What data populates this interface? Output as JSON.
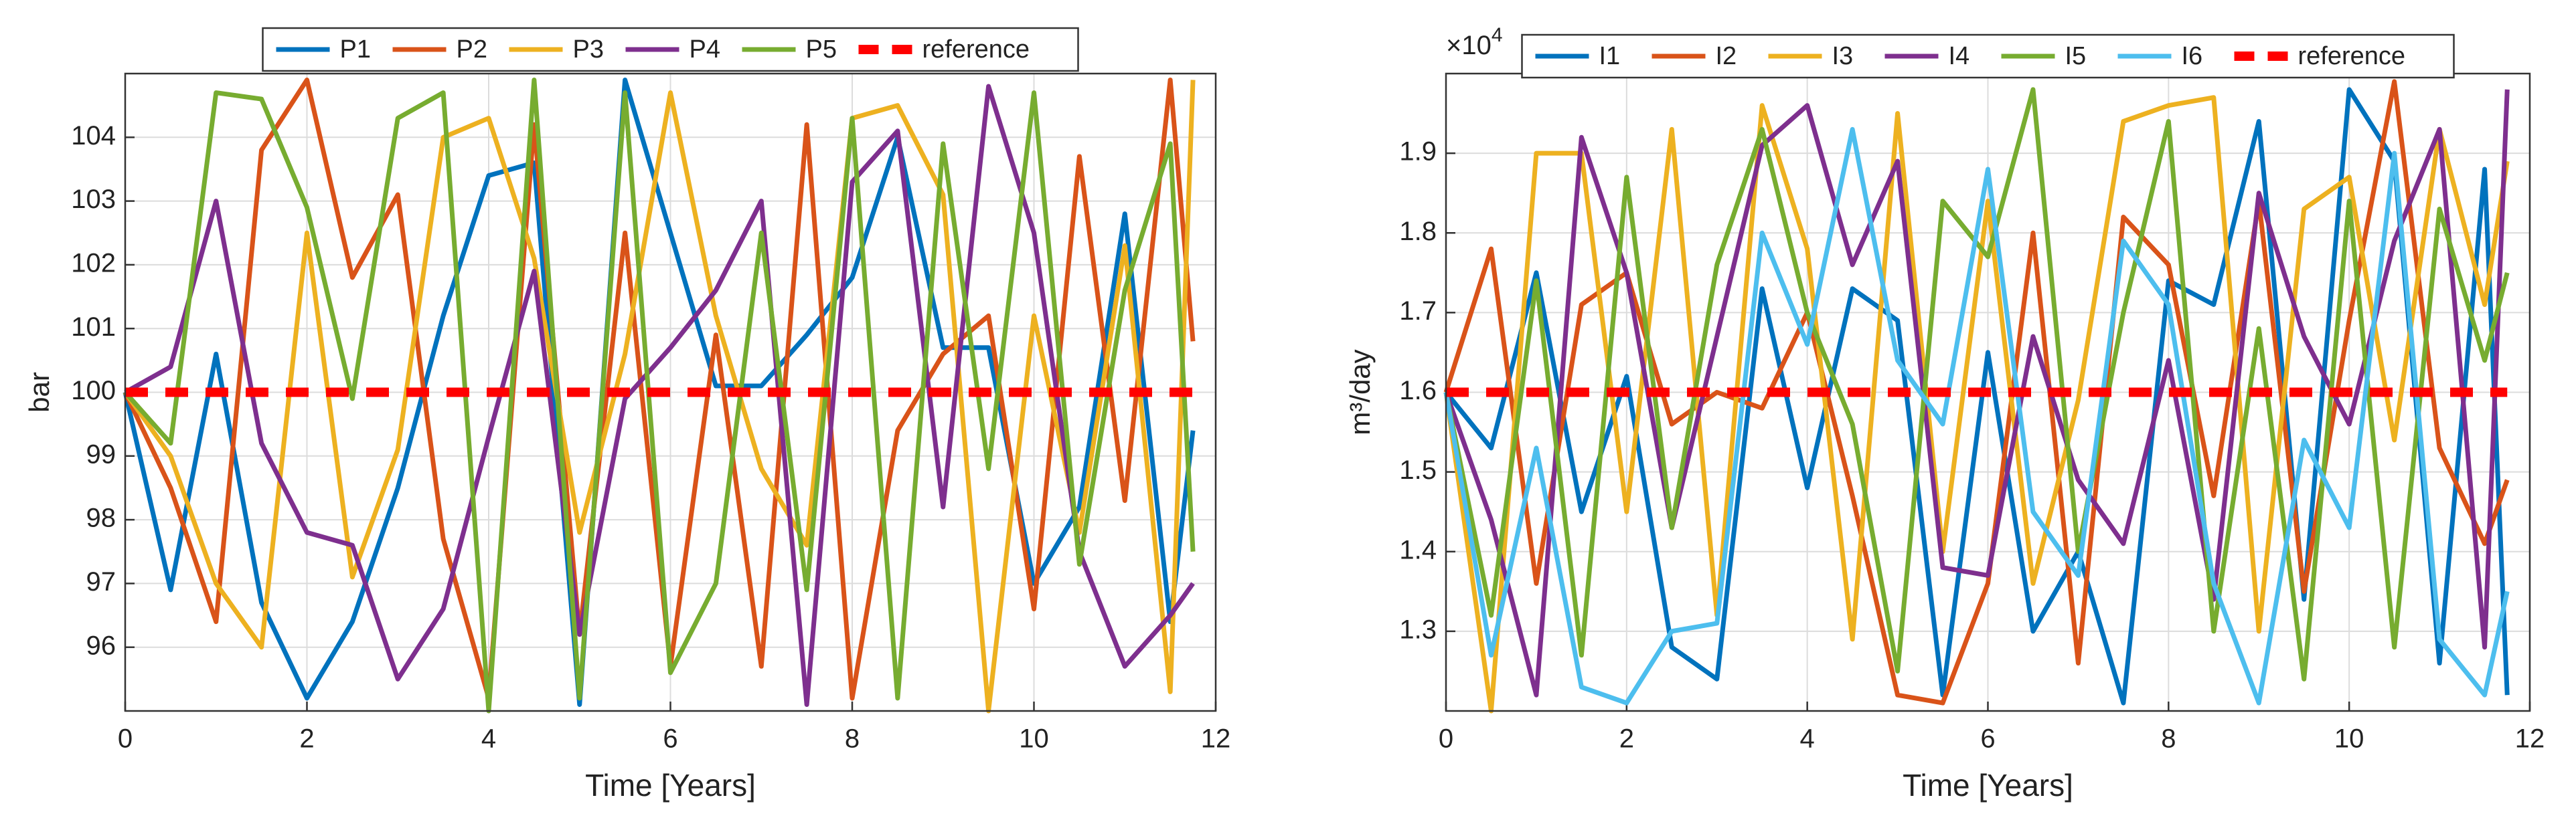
{
  "chart_data": [
    {
      "type": "line",
      "x_label": "Time [Years]",
      "y_label": "bar",
      "x": [
        0,
        0.5,
        1,
        1.5,
        2,
        2.5,
        3,
        3.5,
        4,
        4.5,
        5,
        5.5,
        6,
        6.5,
        7,
        7.5,
        8,
        8.5,
        9,
        9.5,
        10,
        10.5,
        11,
        11.5,
        11.75
      ],
      "xlim": [
        0,
        12
      ],
      "xticks": [
        0,
        2,
        4,
        6,
        8,
        10,
        12
      ],
      "ylim": [
        95,
        105
      ],
      "yticks": [
        96,
        97,
        98,
        99,
        100,
        101,
        102,
        103,
        104
      ],
      "grid": true,
      "legend": "north",
      "series": [
        {
          "name": "P1",
          "color": "#0072bd",
          "values": [
            100,
            96.9,
            100.6,
            96.7,
            95.2,
            96.4,
            98.5,
            101.2,
            103.4,
            103.6,
            95.1,
            104.9,
            102.5,
            100.1,
            100.1,
            100.9,
            101.8,
            104.0,
            100.7,
            100.7,
            97.0,
            98.2,
            102.8,
            96.4,
            99.4
          ]
        },
        {
          "name": "P2",
          "color": "#d95319",
          "values": [
            100,
            98.5,
            96.4,
            103.8,
            104.9,
            101.8,
            103.1,
            97.7,
            95.2,
            104.2,
            96.2,
            102.5,
            95.7,
            100.9,
            95.7,
            104.2,
            95.2,
            99.4,
            100.6,
            101.2,
            96.6,
            103.7,
            98.3,
            104.9,
            100.8
          ]
        },
        {
          "name": "P3",
          "color": "#edb120",
          "values": [
            100,
            99.0,
            97.0,
            96.0,
            102.5,
            97.1,
            99.1,
            104.0,
            104.3,
            102.1,
            97.8,
            100.6,
            104.7,
            101.2,
            98.8,
            97.6,
            104.3,
            104.5,
            103.1,
            95.0,
            101.2,
            97.8,
            102.3,
            95.3,
            104.9
          ]
        },
        {
          "name": "P4",
          "color": "#7e2f8e",
          "values": [
            100,
            100.4,
            103.0,
            99.2,
            97.8,
            97.6,
            95.5,
            96.6,
            99.3,
            101.9,
            96.2,
            99.9,
            100.7,
            101.6,
            103.0,
            95.1,
            103.3,
            104.1,
            98.2,
            104.8,
            102.5,
            97.5,
            95.7,
            96.5,
            97.0
          ]
        },
        {
          "name": "P5",
          "color": "#77ac30",
          "values": [
            100,
            99.2,
            104.7,
            104.6,
            102.9,
            99.9,
            104.3,
            104.7,
            95.0,
            104.9,
            95.2,
            104.7,
            95.6,
            97.0,
            102.5,
            96.9,
            104.3,
            95.2,
            103.9,
            98.8,
            104.7,
            97.3,
            101.6,
            103.9,
            97.5
          ]
        },
        {
          "name": "reference",
          "color": "#ff0000",
          "dashed": true,
          "values": [
            100,
            100,
            100,
            100,
            100,
            100,
            100,
            100,
            100,
            100,
            100,
            100,
            100,
            100,
            100,
            100,
            100,
            100,
            100,
            100,
            100,
            100,
            100,
            100,
            100
          ]
        }
      ]
    },
    {
      "type": "line",
      "x_label": "Time [Years]",
      "y_label": "m³/day",
      "y_multiplier": {
        "base": "×10",
        "exponent": "4"
      },
      "x": [
        0,
        0.5,
        1,
        1.5,
        2,
        2.5,
        3,
        3.5,
        4,
        4.5,
        5,
        5.5,
        6,
        6.5,
        7,
        7.5,
        8,
        8.5,
        9,
        9.5,
        10,
        10.5,
        11,
        11.5,
        11.75
      ],
      "xlim": [
        0,
        12
      ],
      "xticks": [
        0,
        2,
        4,
        6,
        8,
        10,
        12
      ],
      "ylim": [
        1.2,
        2.0
      ],
      "yticks": [
        1.3,
        1.4,
        1.5,
        1.6,
        1.7,
        1.8,
        1.9
      ],
      "grid": true,
      "legend": "north",
      "series": [
        {
          "name": "I1",
          "color": "#0072bd",
          "values": [
            1.6,
            1.53,
            1.75,
            1.45,
            1.62,
            1.28,
            1.24,
            1.73,
            1.48,
            1.73,
            1.69,
            1.22,
            1.65,
            1.3,
            1.4,
            1.21,
            1.74,
            1.71,
            1.94,
            1.34,
            1.98,
            1.89,
            1.26,
            1.88,
            1.22
          ]
        },
        {
          "name": "I2",
          "color": "#d95319",
          "values": [
            1.6,
            1.78,
            1.36,
            1.71,
            1.75,
            1.56,
            1.6,
            1.58,
            1.7,
            1.47,
            1.22,
            1.21,
            1.36,
            1.8,
            1.26,
            1.82,
            1.76,
            1.47,
            1.84,
            1.35,
            1.69,
            1.99,
            1.53,
            1.41,
            1.49
          ]
        },
        {
          "name": "I3",
          "color": "#edb120",
          "values": [
            1.6,
            1.2,
            1.9,
            1.9,
            1.45,
            1.93,
            1.32,
            1.96,
            1.78,
            1.29,
            1.95,
            1.4,
            1.84,
            1.36,
            1.59,
            1.94,
            1.96,
            1.97,
            1.3,
            1.83,
            1.87,
            1.54,
            1.93,
            1.71,
            1.89
          ]
        },
        {
          "name": "I4",
          "color": "#7e2f8e",
          "values": [
            1.6,
            1.44,
            1.22,
            1.92,
            1.75,
            1.43,
            1.67,
            1.91,
            1.96,
            1.76,
            1.89,
            1.38,
            1.37,
            1.67,
            1.49,
            1.41,
            1.64,
            1.34,
            1.85,
            1.67,
            1.56,
            1.79,
            1.93,
            1.28,
            1.98
          ]
        },
        {
          "name": "I5",
          "color": "#77ac30",
          "values": [
            1.6,
            1.32,
            1.74,
            1.27,
            1.87,
            1.43,
            1.76,
            1.93,
            1.7,
            1.56,
            1.25,
            1.84,
            1.77,
            1.98,
            1.4,
            1.7,
            1.94,
            1.3,
            1.68,
            1.24,
            1.84,
            1.28,
            1.83,
            1.64,
            1.75
          ]
        },
        {
          "name": "I6",
          "color": "#4dbeee",
          "values": [
            1.6,
            1.27,
            1.53,
            1.23,
            1.21,
            1.3,
            1.31,
            1.8,
            1.66,
            1.93,
            1.64,
            1.56,
            1.88,
            1.45,
            1.37,
            1.79,
            1.71,
            1.36,
            1.21,
            1.54,
            1.43,
            1.9,
            1.29,
            1.22,
            1.35
          ]
        },
        {
          "name": "reference",
          "color": "#ff0000",
          "dashed": true,
          "values": [
            1.6,
            1.6,
            1.6,
            1.6,
            1.6,
            1.6,
            1.6,
            1.6,
            1.6,
            1.6,
            1.6,
            1.6,
            1.6,
            1.6,
            1.6,
            1.6,
            1.6,
            1.6,
            1.6,
            1.6,
            1.6,
            1.6,
            1.6,
            1.6,
            1.6
          ]
        }
      ]
    }
  ]
}
